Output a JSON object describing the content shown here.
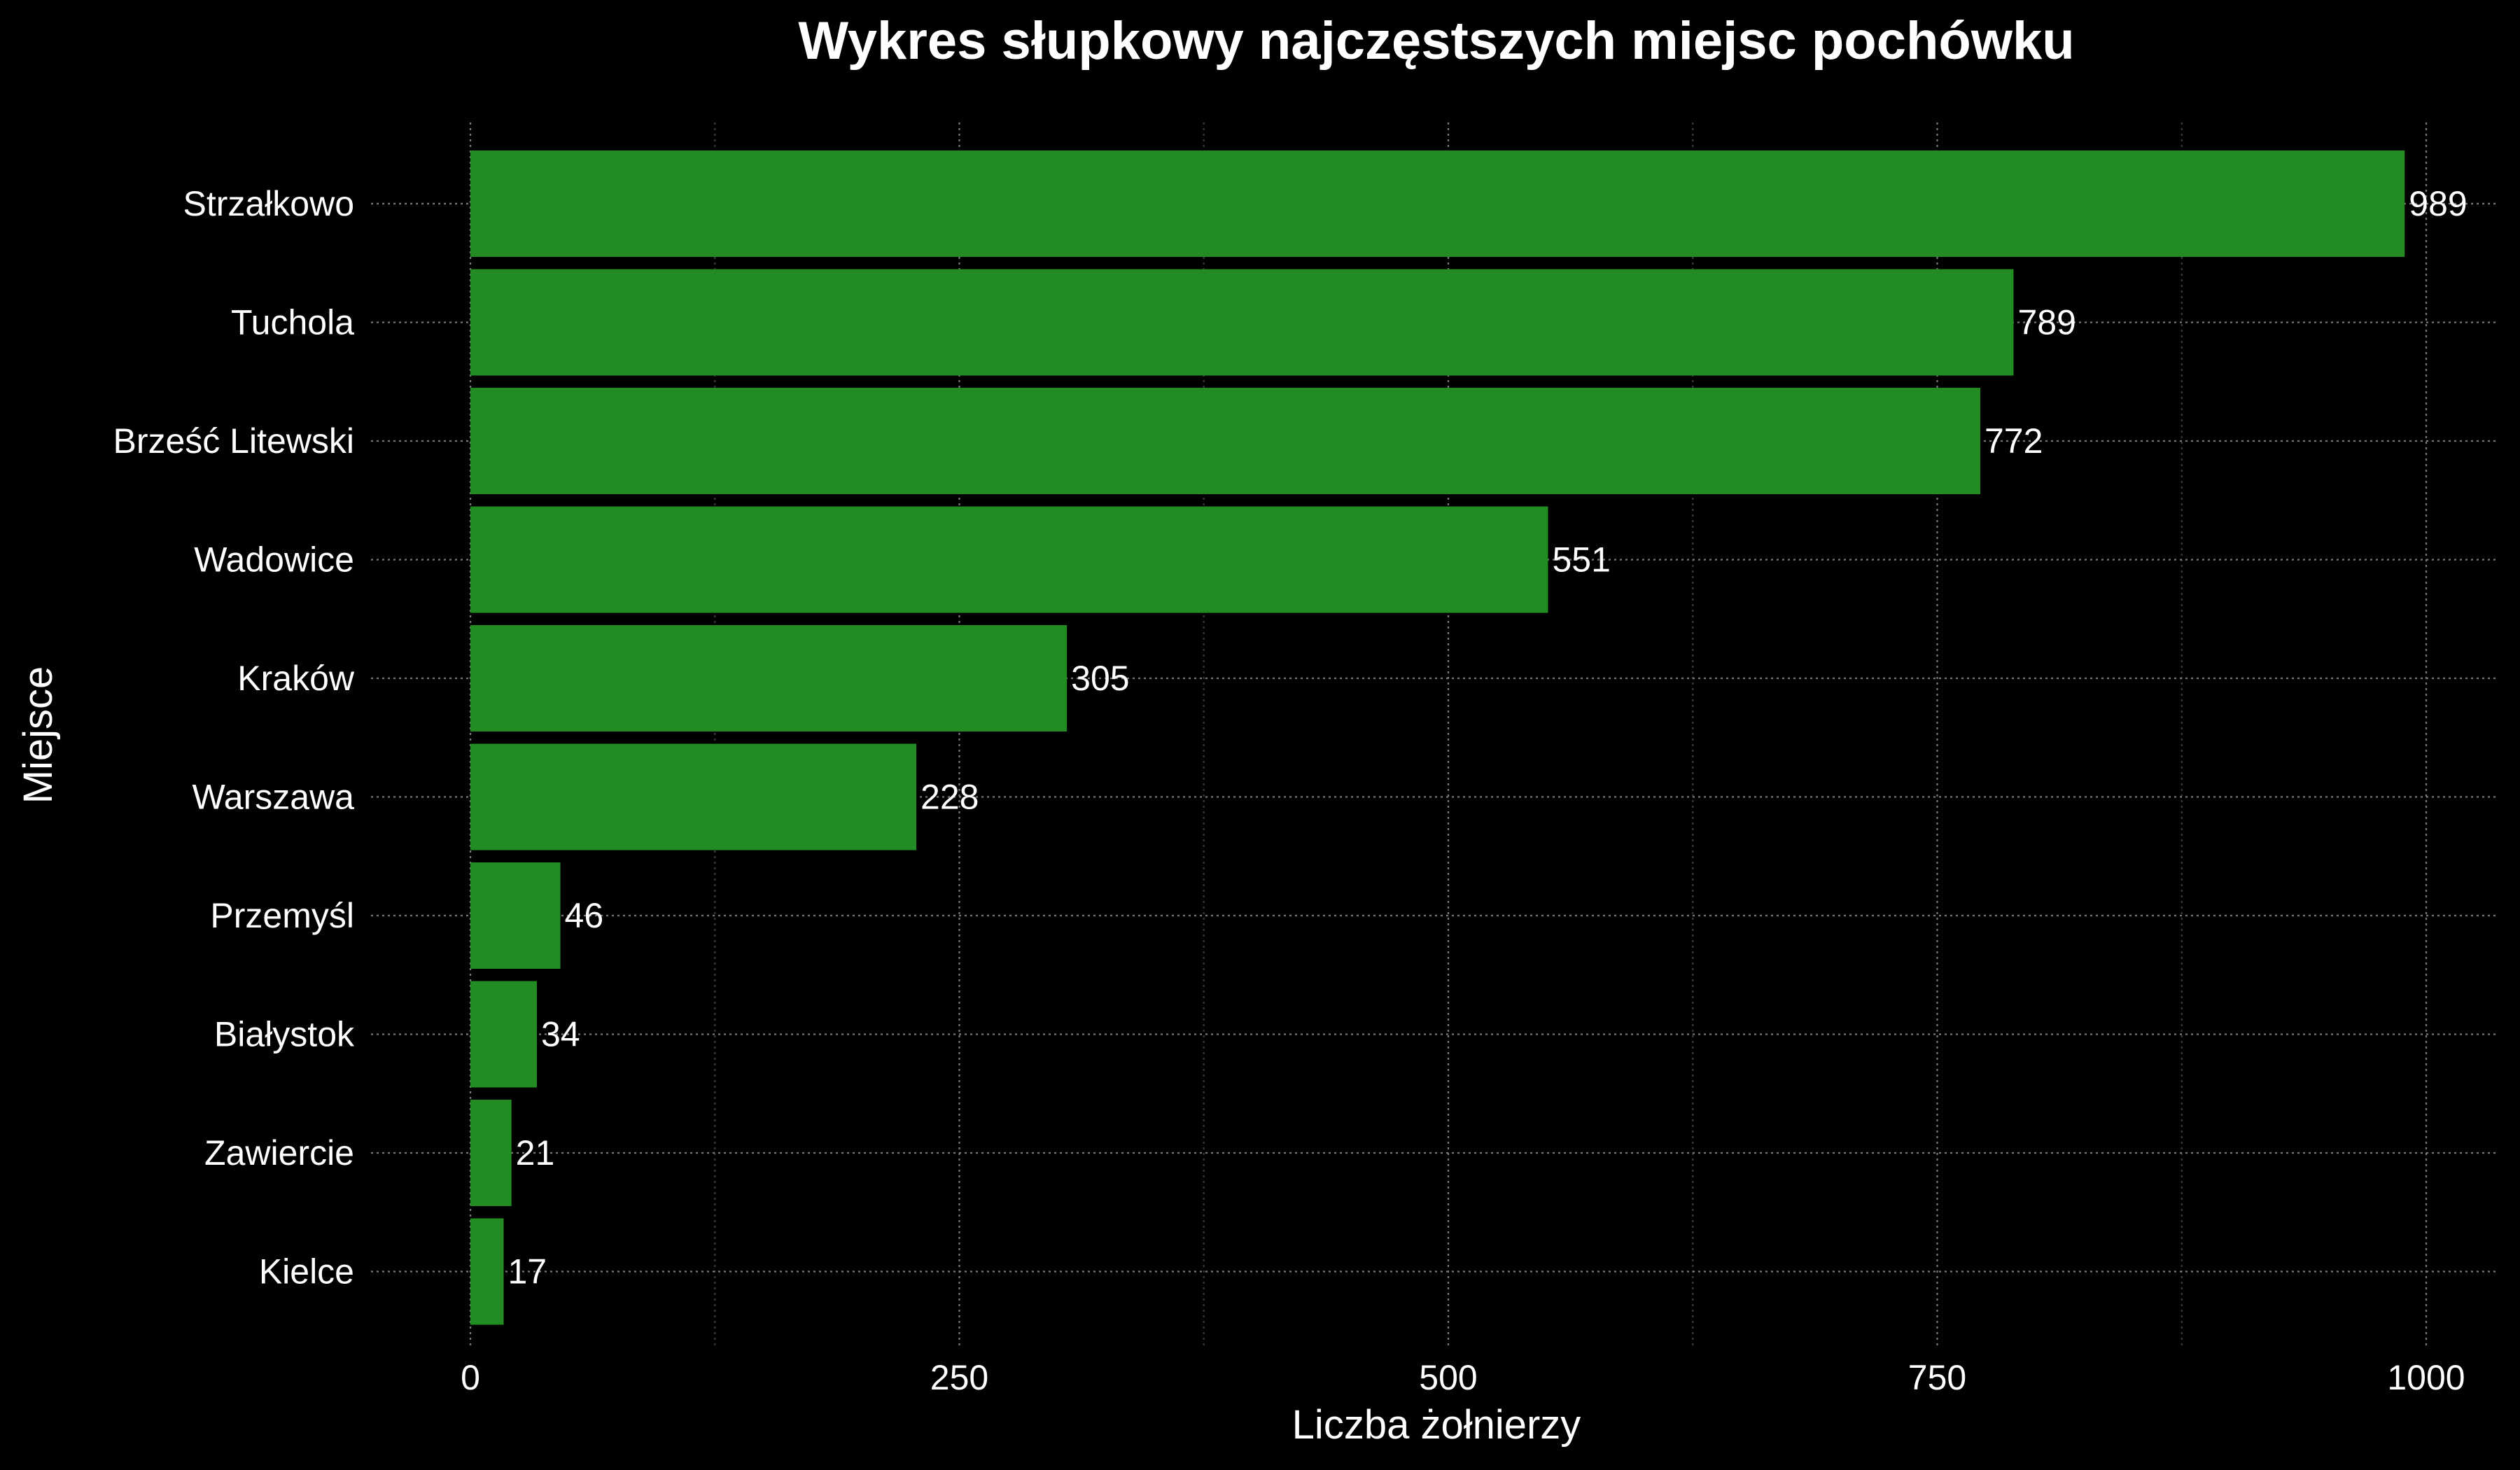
{
  "chart_data": {
    "type": "bar",
    "orientation": "horizontal",
    "title": "Wykres słupkowy najczęstszych miejsc pochówku",
    "xlabel": "Liczba żołnierzy",
    "ylabel": "Miejsce",
    "categories": [
      "Strzałkowo",
      "Tuchola",
      "Brześć Litewski",
      "Wadowice",
      "Kraków",
      "Warszawa",
      "Przemyśl",
      "Białystok",
      "Zawiercie",
      "Kielce"
    ],
    "values": [
      989,
      789,
      772,
      551,
      305,
      228,
      46,
      34,
      21,
      17
    ],
    "xlim": [
      0,
      1000
    ],
    "xticks": [
      0,
      250,
      500,
      750,
      1000
    ],
    "xtick_labels": [
      "0",
      "250",
      "500",
      "750",
      "1000"
    ],
    "grid": true,
    "colors": {
      "bar": "#228b22",
      "background": "#000000",
      "text": "#ffffff",
      "grid": "#7a7a7a"
    }
  }
}
